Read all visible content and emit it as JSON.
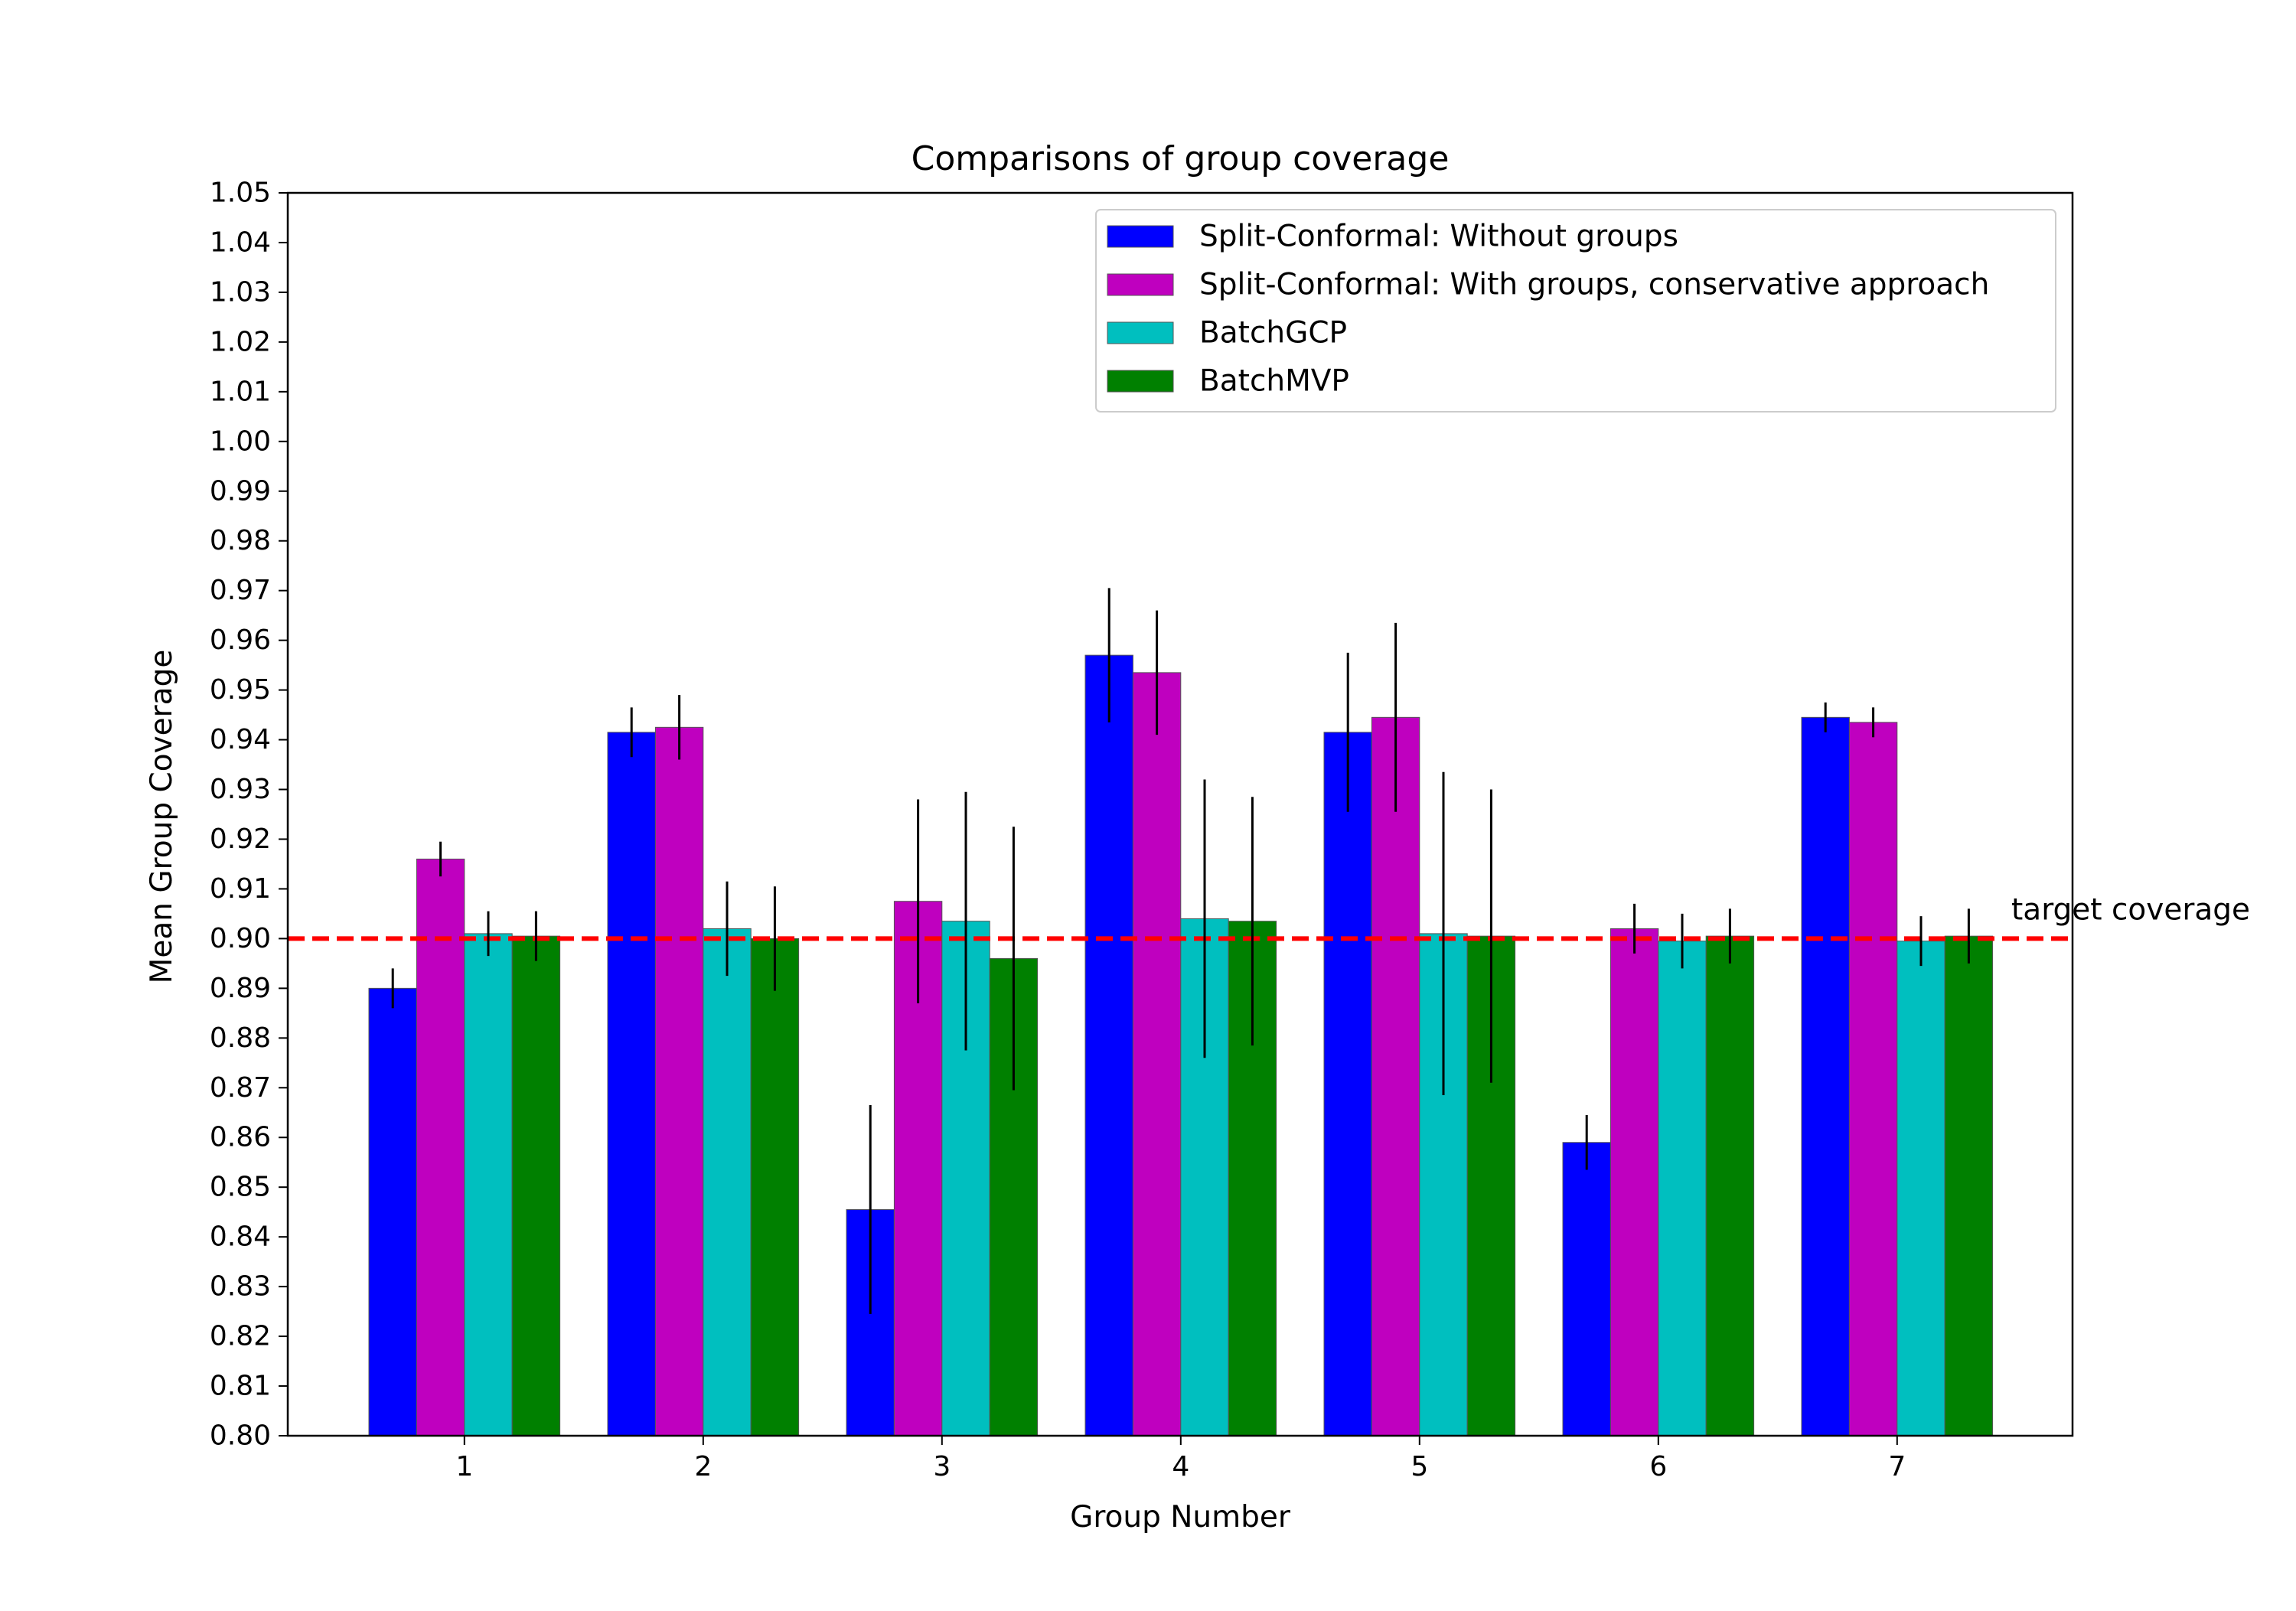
{
  "chart_data": {
    "type": "bar",
    "title": "Comparisons of group coverage",
    "xlabel": "Group Number",
    "ylabel": "Mean Group Coverage",
    "ylim": [
      0.8,
      1.05
    ],
    "yticks": [
      "0.80",
      "0.81",
      "0.82",
      "0.83",
      "0.84",
      "0.85",
      "0.86",
      "0.87",
      "0.88",
      "0.89",
      "0.90",
      "0.91",
      "0.92",
      "0.93",
      "0.94",
      "0.95",
      "0.96",
      "0.97",
      "0.98",
      "0.99",
      "1.00",
      "1.01",
      "1.02",
      "1.03",
      "1.04",
      "1.05"
    ],
    "categories": [
      "1",
      "2",
      "3",
      "4",
      "5",
      "6",
      "7"
    ],
    "legend_position": "top-right",
    "grid": false,
    "series": [
      {
        "name": "Split-Conformal: Without groups",
        "color": "#0000ff",
        "values": [
          0.89,
          0.9415,
          0.8455,
          0.957,
          0.9415,
          0.859,
          0.9445
        ],
        "errors": [
          0.004,
          0.005,
          0.021,
          0.0135,
          0.016,
          0.0055,
          0.003
        ]
      },
      {
        "name": "Split-Conformal: With groups, conservative approach",
        "color": "#bf00bf",
        "values": [
          0.916,
          0.9425,
          0.9075,
          0.9535,
          0.9445,
          0.902,
          0.9435
        ],
        "errors": [
          0.0035,
          0.0065,
          0.0205,
          0.0125,
          0.019,
          0.005,
          0.003
        ]
      },
      {
        "name": "BatchGCP",
        "color": "#00bfbf",
        "values": [
          0.901,
          0.902,
          0.9035,
          0.904,
          0.901,
          0.8995,
          0.8995
        ],
        "errors": [
          0.0045,
          0.0095,
          0.026,
          0.028,
          0.0325,
          0.0055,
          0.005
        ]
      },
      {
        "name": "BatchMVP",
        "color": "#008000",
        "values": [
          0.9005,
          0.9,
          0.896,
          0.9035,
          0.9005,
          0.9005,
          0.9005
        ],
        "errors": [
          0.005,
          0.0105,
          0.0265,
          0.025,
          0.0295,
          0.0055,
          0.0055
        ]
      }
    ],
    "reference_line": {
      "value": 0.9,
      "color": "#ff0000",
      "label": "target coverage"
    }
  }
}
